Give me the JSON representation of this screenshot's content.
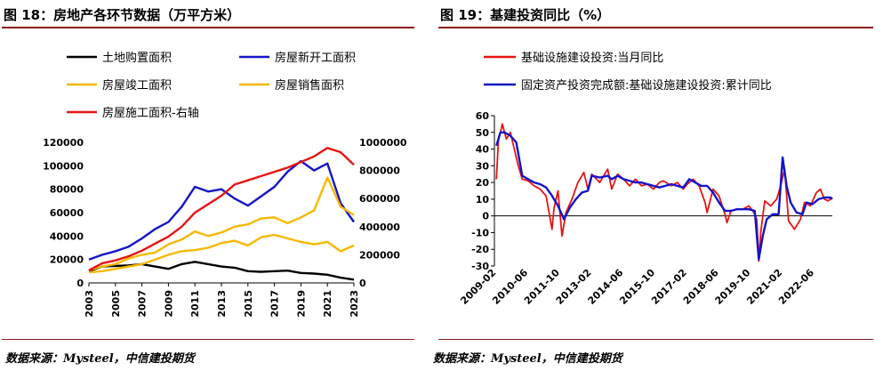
{
  "left_panel": {
    "title": "图 18：房地产各环节数据（万平方米）",
    "source": "数据来源：Mysteel，中信建投期货"
  },
  "right_panel": {
    "title": "图 19：基建投资同比（%）",
    "source": "数据来源：Mysteel，中信建投期货"
  },
  "chart_data": [
    {
      "type": "line",
      "title": "图 18：房地产各环节数据（万平方米）",
      "x": [
        2003,
        2004,
        2005,
        2006,
        2007,
        2008,
        2009,
        2010,
        2011,
        2012,
        2013,
        2014,
        2015,
        2016,
        2017,
        2018,
        2019,
        2020,
        2021,
        2022,
        2023
      ],
      "xticks": [
        "2003",
        "2005",
        "2007",
        "2009",
        "2011",
        "2013",
        "2015",
        "2017",
        "2019",
        "2021",
        "2023"
      ],
      "ylim": [
        0,
        120000
      ],
      "yticks": [
        "0",
        "20000",
        "40000",
        "60000",
        "80000",
        "100000",
        "120000"
      ],
      "y2lim": [
        0,
        1000000
      ],
      "y2ticks": [
        "0",
        "200000",
        "400000",
        "600000",
        "800000",
        "1000000"
      ],
      "legend_position": "top",
      "series": [
        {
          "name": "土地购置面积",
          "color": "#000000",
          "axis": "left",
          "values": [
            10000,
            14000,
            14500,
            15000,
            16000,
            14000,
            12000,
            16000,
            18000,
            16000,
            14000,
            13000,
            10000,
            9500,
            10000,
            10500,
            8500,
            8000,
            7000,
            4500,
            2800
          ]
        },
        {
          "name": "房屋新开工面积",
          "color": "#1414c8",
          "axis": "left",
          "values": [
            20000,
            24000,
            27000,
            31000,
            38000,
            46000,
            52000,
            65000,
            82000,
            78000,
            80000,
            72000,
            66000,
            74000,
            82000,
            95000,
            104000,
            96000,
            102000,
            68000,
            52000
          ]
        },
        {
          "name": "房屋竣工面积",
          "color": "#f5b800",
          "axis": "left",
          "values": [
            11000,
            14000,
            16000,
            21000,
            24000,
            26000,
            33000,
            37000,
            44000,
            40000,
            43000,
            48000,
            50000,
            55000,
            56000,
            51000,
            56000,
            62000,
            90000,
            65000,
            58000
          ]
        },
        {
          "name": "房屋销售面积",
          "color": "#f5b800",
          "axis": "left",
          "values": [
            9000,
            10000,
            12000,
            14000,
            16000,
            20000,
            24000,
            27000,
            28000,
            30000,
            34000,
            36000,
            32000,
            39000,
            41000,
            38000,
            35000,
            33000,
            35000,
            27000,
            32000
          ]
        },
        {
          "name": "房屋施工面积-右轴",
          "color": "#e61414",
          "axis": "right",
          "values": [
            90000,
            140000,
            160000,
            190000,
            230000,
            280000,
            330000,
            400000,
            500000,
            560000,
            620000,
            700000,
            730000,
            760000,
            790000,
            820000,
            860000,
            900000,
            960000,
            930000,
            840000
          ]
        }
      ]
    },
    {
      "type": "line",
      "title": "图 19：基建投资同比（%）",
      "xticks": [
        "2009-02",
        "2010-06",
        "2011-10",
        "2013-02",
        "2014-06",
        "2015-10",
        "2017-02",
        "2018-06",
        "2019-10",
        "2021-02",
        "2022-06"
      ],
      "ylim": [
        -30,
        60
      ],
      "yticks": [
        "-30",
        "-20",
        "-10",
        "0",
        "10",
        "20",
        "30",
        "40",
        "50",
        "60"
      ],
      "legend_position": "top",
      "series": [
        {
          "name": "基础设施建设投资:当月同比",
          "color": "#e61414",
          "points": [
            [
              "2009-02",
              22
            ],
            [
              "2009-03",
              45
            ],
            [
              "2009-05",
              55
            ],
            [
              "2009-07",
              46
            ],
            [
              "2009-09",
              50
            ],
            [
              "2009-11",
              40
            ],
            [
              "2010-01",
              30
            ],
            [
              "2010-03",
              22
            ],
            [
              "2010-06",
              21
            ],
            [
              "2010-09",
              18
            ],
            [
              "2010-12",
              16
            ],
            [
              "2011-03",
              12
            ],
            [
              "2011-06",
              -8
            ],
            [
              "2011-07",
              5
            ],
            [
              "2011-09",
              15
            ],
            [
              "2011-11",
              -12
            ],
            [
              "2012-01",
              2
            ],
            [
              "2012-04",
              10
            ],
            [
              "2012-07",
              20
            ],
            [
              "2012-10",
              26
            ],
            [
              "2012-12",
              16
            ],
            [
              "2013-02",
              25
            ],
            [
              "2013-06",
              20
            ],
            [
              "2013-10",
              28
            ],
            [
              "2013-12",
              16
            ],
            [
              "2014-03",
              25
            ],
            [
              "2014-06",
              22
            ],
            [
              "2014-09",
              18
            ],
            [
              "2014-12",
              22
            ],
            [
              "2015-03",
              18
            ],
            [
              "2015-06",
              19
            ],
            [
              "2015-09",
              16
            ],
            [
              "2015-12",
              20
            ],
            [
              "2016-02",
              21
            ],
            [
              "2016-06",
              18
            ],
            [
              "2016-09",
              20
            ],
            [
              "2016-12",
              16
            ],
            [
              "2017-02",
              19
            ],
            [
              "2017-05",
              22
            ],
            [
              "2017-08",
              18
            ],
            [
              "2017-11",
              8
            ],
            [
              "2017-12",
              2
            ],
            [
              "2018-03",
              16
            ],
            [
              "2018-06",
              12
            ],
            [
              "2018-09",
              1
            ],
            [
              "2018-10",
              -4
            ],
            [
              "2018-12",
              3
            ],
            [
              "2019-03",
              4
            ],
            [
              "2019-06",
              4
            ],
            [
              "2019-09",
              6
            ],
            [
              "2019-11",
              3
            ],
            [
              "2020-01",
              -2
            ],
            [
              "2020-02",
              -27
            ],
            [
              "2020-03",
              -10
            ],
            [
              "2020-05",
              9
            ],
            [
              "2020-08",
              6
            ],
            [
              "2020-11",
              10
            ],
            [
              "2021-01",
              18
            ],
            [
              "2021-03",
              28
            ],
            [
              "2021-05",
              -3
            ],
            [
              "2021-08",
              -8
            ],
            [
              "2021-11",
              -2
            ],
            [
              "2022-01",
              8
            ],
            [
              "2022-04",
              6
            ],
            [
              "2022-07",
              14
            ],
            [
              "2022-09",
              16
            ],
            [
              "2022-11",
              10
            ],
            [
              "2023-01",
              9
            ],
            [
              "2023-03",
              11
            ]
          ]
        },
        {
          "name": "固定资产投资完成额:基础设施建设投资:累计同比",
          "color": "#1414c8",
          "points": [
            [
              "2009-02",
              42
            ],
            [
              "2009-04",
              50
            ],
            [
              "2009-06",
              50
            ],
            [
              "2009-09",
              48
            ],
            [
              "2009-12",
              44
            ],
            [
              "2010-03",
              24
            ],
            [
              "2010-06",
              22
            ],
            [
              "2010-09",
              20
            ],
            [
              "2010-12",
              19
            ],
            [
              "2011-03",
              17
            ],
            [
              "2011-06",
              12
            ],
            [
              "2011-09",
              6
            ],
            [
              "2011-12",
              -2
            ],
            [
              "2012-03",
              5
            ],
            [
              "2012-06",
              10
            ],
            [
              "2012-09",
              14
            ],
            [
              "2012-12",
              15
            ],
            [
              "2013-02",
              24
            ],
            [
              "2013-06",
              23
            ],
            [
              "2013-10",
              24
            ],
            [
              "2013-12",
              22
            ],
            [
              "2014-03",
              24
            ],
            [
              "2014-06",
              22
            ],
            [
              "2014-12",
              20
            ],
            [
              "2015-03",
              20
            ],
            [
              "2015-06",
              19
            ],
            [
              "2015-09",
              18
            ],
            [
              "2015-12",
              17
            ],
            [
              "2016-03",
              18
            ],
            [
              "2016-06",
              19
            ],
            [
              "2016-09",
              18
            ],
            [
              "2016-12",
              17
            ],
            [
              "2017-03",
              22
            ],
            [
              "2017-06",
              20
            ],
            [
              "2017-09",
              18
            ],
            [
              "2017-12",
              18
            ],
            [
              "2018-03",
              14
            ],
            [
              "2018-06",
              8
            ],
            [
              "2018-09",
              3
            ],
            [
              "2018-12",
              3
            ],
            [
              "2019-03",
              4
            ],
            [
              "2019-06",
              4
            ],
            [
              "2019-09",
              4
            ],
            [
              "2019-12",
              3
            ],
            [
              "2020-02",
              -26
            ],
            [
              "2020-04",
              -12
            ],
            [
              "2020-06",
              -2
            ],
            [
              "2020-09",
              1
            ],
            [
              "2020-12",
              1
            ],
            [
              "2021-02",
              35
            ],
            [
              "2021-04",
              18
            ],
            [
              "2021-06",
              8
            ],
            [
              "2021-09",
              2
            ],
            [
              "2021-12",
              1
            ],
            [
              "2022-02",
              8
            ],
            [
              "2022-05",
              7
            ],
            [
              "2022-08",
              10
            ],
            [
              "2022-11",
              11
            ],
            [
              "2023-02",
              11
            ],
            [
              "2023-03",
              10
            ]
          ]
        }
      ]
    }
  ]
}
